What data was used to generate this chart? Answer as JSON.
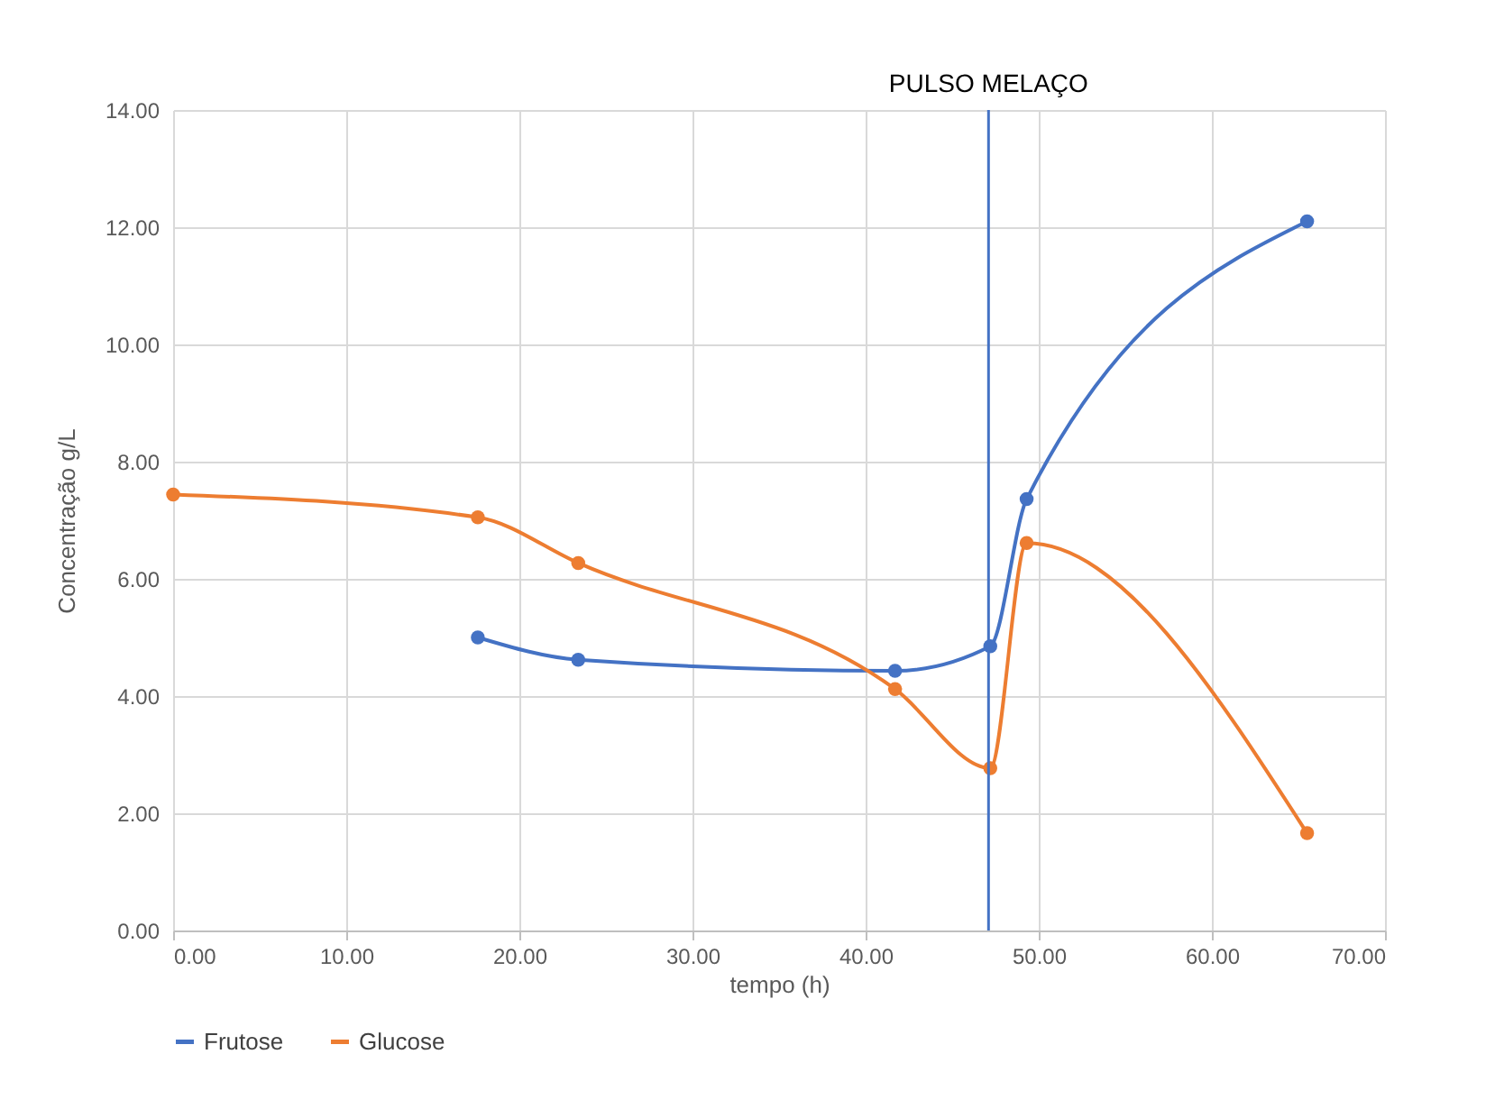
{
  "chart_data": {
    "type": "line",
    "xlabel": "tempo (h)",
    "ylabel": "Concentração  g/L",
    "series": [
      {
        "name": "Frutose",
        "color": "#4472c4",
        "x": [
          17.6,
          23.4,
          41.7,
          47.2,
          49.3,
          65.5
        ],
        "values": [
          5.0,
          4.62,
          4.43,
          4.85,
          7.36,
          12.1
        ]
      },
      {
        "name": "Glucose",
        "color": "#ed7d31",
        "x": [
          0,
          17.6,
          23.4,
          41.7,
          47.2,
          49.3,
          65.5
        ],
        "values": [
          7.44,
          7.05,
          6.27,
          4.12,
          2.77,
          6.61,
          1.66
        ]
      }
    ],
    "xlim": [
      0,
      70
    ],
    "xticks": [
      {
        "value": 0,
        "label": "0.00"
      },
      {
        "value": 10,
        "label": "10.00"
      },
      {
        "value": 20,
        "label": "20.00"
      },
      {
        "value": 30,
        "label": "30.00"
      },
      {
        "value": 40,
        "label": "40.00"
      },
      {
        "value": 50,
        "label": "50.00"
      },
      {
        "value": 60,
        "label": "60.00"
      },
      {
        "value": 70,
        "label": "70.00"
      }
    ],
    "ylim": [
      0,
      14
    ],
    "yticks": [
      {
        "value": 0,
        "label": "0.00"
      },
      {
        "value": 2,
        "label": "2.00"
      },
      {
        "value": 4,
        "label": "4.00"
      },
      {
        "value": 6,
        "label": "6.00"
      },
      {
        "value": 8,
        "label": "8.00"
      },
      {
        "value": 10,
        "label": "10.00"
      },
      {
        "value": 12,
        "label": "12.00"
      },
      {
        "value": 14,
        "label": "14.00"
      }
    ],
    "ref_lines": [
      {
        "axis": "x",
        "value": 47.1,
        "label": "PULSO MELAÇO",
        "color": "#4472c4"
      }
    ],
    "grid": true,
    "legend": "bottom",
    "marker": "circle",
    "line_style": "solid"
  }
}
